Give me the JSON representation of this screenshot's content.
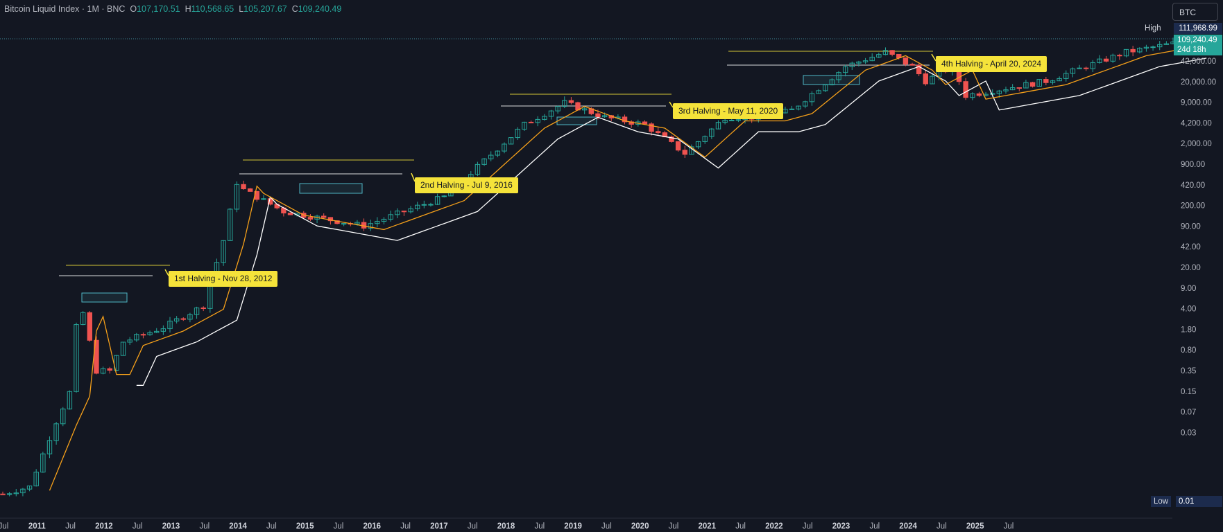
{
  "legend": {
    "title": "Bitcoin Liquid Index · 1M · BNC",
    "o_label": "O",
    "o_value": "107,170.51",
    "h_label": "H",
    "h_value": "110,568.65",
    "l_label": "L",
    "l_value": "105,207.67",
    "c_label": "C",
    "c_value": "109,240.49"
  },
  "symbol": "BTC",
  "high_marker": {
    "label": "High",
    "value": "111,968.99"
  },
  "last_price": {
    "value": "109,240.49",
    "countdown": "24d 18h"
  },
  "low_marker": {
    "label": "Low",
    "value": "0.01"
  },
  "price_axis": [
    "42,000.00",
    "20,000.00",
    "9,000.00",
    "4,200.00",
    "2,000.00",
    "900.00",
    "420.00",
    "200.00",
    "90.00",
    "42.00",
    "20.00",
    "9.00",
    "4.00",
    "1.80",
    "0.80",
    "0.35",
    "0.15",
    "0.07",
    "0.03"
  ],
  "time_axis": [
    "Jul",
    "2011",
    "Jul",
    "2012",
    "Jul",
    "2013",
    "Jul",
    "2014",
    "Jul",
    "2015",
    "Jul",
    "2016",
    "Jul",
    "2017",
    "Jul",
    "2018",
    "Jul",
    "2019",
    "Jul",
    "2020",
    "Jul",
    "2021",
    "Jul",
    "2022",
    "Jul",
    "2023",
    "Jul",
    "2024",
    "Jul",
    "2025",
    "Jul"
  ],
  "annotations": [
    {
      "text": "1st Halving - Nov 28, 2012"
    },
    {
      "text": "2nd Halving - Jul 9, 2016"
    },
    {
      "text": "3rd Halving - May 11, 2020"
    },
    {
      "text": "4th Halving - April 20, 2024"
    }
  ],
  "colors": {
    "background": "#131722",
    "up": "#26a69a",
    "down": "#ef5350",
    "ma_fast": "#f7a11a",
    "ma_slow": "#ffffff",
    "annotation": "#f5e33a",
    "range_line": "#f5e33a",
    "box": "#4fb7c7"
  },
  "chart_data": {
    "type": "candlestick",
    "title": "Bitcoin Liquid Index · 1M · BNC",
    "scale": "log",
    "yrange": [
      0.01,
      111968.99
    ],
    "xrange": [
      "2010-07",
      "2025-07"
    ],
    "ohlc_last": {
      "open": 107170.51,
      "high": 110568.65,
      "low": 105207.67,
      "close": 109240.49
    },
    "all_time_high": 111968.99,
    "all_time_low": 0.01,
    "halvings": [
      {
        "date": "2012-11-28",
        "label": "1st Halving - Nov 28, 2012"
      },
      {
        "date": "2016-07-09",
        "label": "2nd Halving - Jul 9, 2016"
      },
      {
        "date": "2020-05-11",
        "label": "3rd Halving - May 11, 2020"
      },
      {
        "date": "2024-04-20",
        "label": "4th Halving - April 20, 2024"
      }
    ],
    "grid": false
  }
}
